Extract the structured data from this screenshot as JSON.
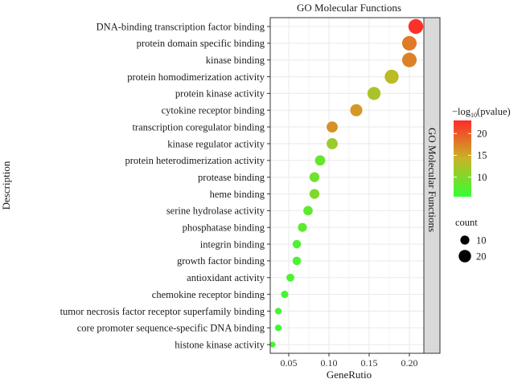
{
  "chart_data": {
    "type": "scatter",
    "title": "GO Molecular Functions",
    "facet_label": "GO Molecular Functions",
    "xlabel": "GeneRutio",
    "ylabel": "Description",
    "xlim": [
      0.027,
      0.218
    ],
    "xticks": [
      0.05,
      0.1,
      0.15,
      0.2
    ],
    "xtick_labels": [
      "0.05",
      "0.10",
      "0.15",
      "0.20"
    ],
    "grid": true,
    "points": [
      {
        "term": "DNA-binding transcription factor binding",
        "gene_ratio": 0.208,
        "count": 24,
        "neg_log10_p": 22.5
      },
      {
        "term": "protein domain specific binding",
        "gene_ratio": 0.2,
        "count": 23,
        "neg_log10_p": 18.0
      },
      {
        "term": "kinase binding",
        "gene_ratio": 0.2,
        "count": 23,
        "neg_log10_p": 17.5
      },
      {
        "term": "protein homodimerization activity",
        "gene_ratio": 0.178,
        "count": 21,
        "neg_log10_p": 13.5
      },
      {
        "term": "protein kinase activity",
        "gene_ratio": 0.156,
        "count": 18,
        "neg_log10_p": 12.5
      },
      {
        "term": "cytokine receptor binding",
        "gene_ratio": 0.134,
        "count": 15,
        "neg_log10_p": 16.0
      },
      {
        "term": "transcription coregulator binding",
        "gene_ratio": 0.104,
        "count": 12,
        "neg_log10_p": 16.5
      },
      {
        "term": "kinase regulator activity",
        "gene_ratio": 0.104,
        "count": 12,
        "neg_log10_p": 11.5
      },
      {
        "term": "protein heterodimerization activity",
        "gene_ratio": 0.089,
        "count": 10,
        "neg_log10_p": 8.5
      },
      {
        "term": "protease binding",
        "gene_ratio": 0.082,
        "count": 9,
        "neg_log10_p": 9.0
      },
      {
        "term": "heme binding",
        "gene_ratio": 0.082,
        "count": 9,
        "neg_log10_p": 10.0
      },
      {
        "term": "serine hydrolase activity",
        "gene_ratio": 0.074,
        "count": 8,
        "neg_log10_p": 8.0
      },
      {
        "term": "phosphatase binding",
        "gene_ratio": 0.067,
        "count": 7,
        "neg_log10_p": 8.0
      },
      {
        "term": "integrin binding",
        "gene_ratio": 0.06,
        "count": 6,
        "neg_log10_p": 7.0
      },
      {
        "term": "growth factor binding",
        "gene_ratio": 0.06,
        "count": 6,
        "neg_log10_p": 7.0
      },
      {
        "term": "antioxidant activity",
        "gene_ratio": 0.052,
        "count": 5,
        "neg_log10_p": 7.0
      },
      {
        "term": "chemokine receptor binding",
        "gene_ratio": 0.045,
        "count": 4,
        "neg_log10_p": 6.5
      },
      {
        "term": "tumor necrosis factor receptor superfamily binding",
        "gene_ratio": 0.037,
        "count": 3,
        "neg_log10_p": 6.5
      },
      {
        "term": "core promoter sequence-specific DNA binding",
        "gene_ratio": 0.037,
        "count": 3,
        "neg_log10_p": 6.0
      },
      {
        "term": "histone kinase activity",
        "gene_ratio": 0.03,
        "count": 2,
        "neg_log10_p": 6.5
      }
    ],
    "color_legend": {
      "title_prefix": "−log",
      "title_sub": "10",
      "title_suffix": "(pvalue)",
      "min": 5.5,
      "max": 23.0,
      "ticks": [
        10,
        15,
        20
      ],
      "low_color": "#33ff33",
      "mid_color": "#c8b426",
      "high_color": "#ff2a2a"
    },
    "size_legend": {
      "title": "count",
      "values": [
        10,
        20
      ]
    },
    "colors": {
      "panel_background": "#ffffff",
      "grid": "#ebebeb",
      "strip_background": "#d9d9d9",
      "border": "#333333"
    }
  }
}
